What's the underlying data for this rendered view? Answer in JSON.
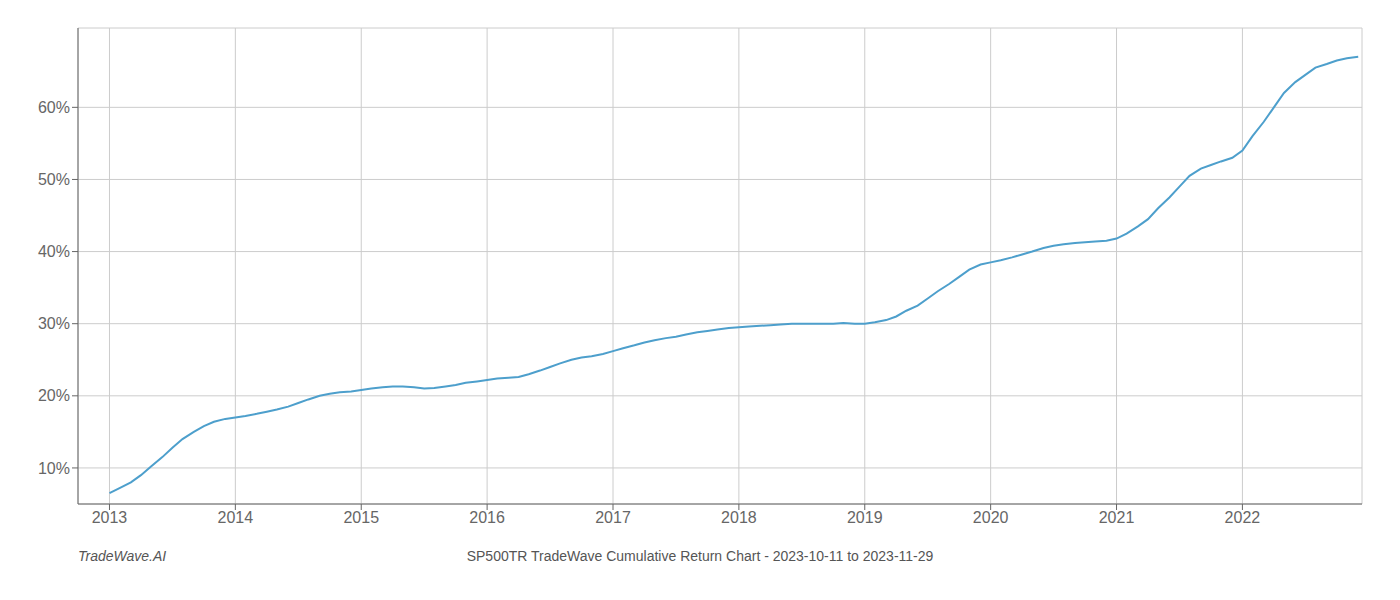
{
  "chart_data": {
    "type": "line",
    "title": "SP500TR TradeWave Cumulative Return Chart - 2023-10-11 to 2023-11-29",
    "annotations": [
      "TradeWave.AI"
    ],
    "color": "#4d9fcc",
    "grid": true,
    "x": [
      2013.0,
      2013.08,
      2013.17,
      2013.25,
      2013.33,
      2013.42,
      2013.5,
      2013.58,
      2013.67,
      2013.75,
      2013.83,
      2013.92,
      2014.0,
      2014.08,
      2014.17,
      2014.25,
      2014.33,
      2014.42,
      2014.5,
      2014.58,
      2014.67,
      2014.75,
      2014.83,
      2014.92,
      2015.0,
      2015.08,
      2015.17,
      2015.25,
      2015.33,
      2015.42,
      2015.5,
      2015.58,
      2015.67,
      2015.75,
      2015.83,
      2015.92,
      2016.0,
      2016.08,
      2016.17,
      2016.25,
      2016.33,
      2016.42,
      2016.5,
      2016.58,
      2016.67,
      2016.75,
      2016.83,
      2016.92,
      2017.0,
      2017.08,
      2017.17,
      2017.25,
      2017.33,
      2017.42,
      2017.5,
      2017.58,
      2017.67,
      2017.75,
      2017.83,
      2017.92,
      2018.0,
      2018.08,
      2018.17,
      2018.25,
      2018.33,
      2018.42,
      2018.5,
      2018.58,
      2018.67,
      2018.75,
      2018.83,
      2018.92,
      2019.0,
      2019.08,
      2019.17,
      2019.25,
      2019.33,
      2019.42,
      2019.5,
      2019.58,
      2019.67,
      2019.75,
      2019.83,
      2019.92,
      2020.0,
      2020.08,
      2020.17,
      2020.25,
      2020.33,
      2020.42,
      2020.5,
      2020.58,
      2020.67,
      2020.75,
      2020.83,
      2020.92,
      2021.0,
      2021.08,
      2021.17,
      2021.25,
      2021.33,
      2021.42,
      2021.5,
      2021.58,
      2021.67,
      2021.75,
      2021.83,
      2021.92,
      2022.0,
      2022.08,
      2022.17,
      2022.25,
      2022.33,
      2022.42,
      2022.5,
      2022.58,
      2022.67,
      2022.75,
      2022.83,
      2022.92
    ],
    "values": [
      6.5,
      7.2,
      8.0,
      9.0,
      10.2,
      11.5,
      12.8,
      14.0,
      15.0,
      15.8,
      16.4,
      16.8,
      17.0,
      17.2,
      17.5,
      17.8,
      18.1,
      18.5,
      19.0,
      19.5,
      20.0,
      20.3,
      20.5,
      20.6,
      20.8,
      21.0,
      21.2,
      21.3,
      21.3,
      21.2,
      21.0,
      21.1,
      21.3,
      21.5,
      21.8,
      22.0,
      22.2,
      22.4,
      22.5,
      22.6,
      23.0,
      23.5,
      24.0,
      24.5,
      25.0,
      25.3,
      25.5,
      25.8,
      26.2,
      26.6,
      27.0,
      27.4,
      27.7,
      28.0,
      28.2,
      28.5,
      28.8,
      29.0,
      29.2,
      29.4,
      29.5,
      29.6,
      29.7,
      29.8,
      29.9,
      30.0,
      30.0,
      30.0,
      30.0,
      30.0,
      30.1,
      30.0,
      30.0,
      30.2,
      30.5,
      31.0,
      31.8,
      32.5,
      33.5,
      34.5,
      35.5,
      36.5,
      37.5,
      38.2,
      38.5,
      38.8,
      39.2,
      39.6,
      40.0,
      40.5,
      40.8,
      41.0,
      41.2,
      41.3,
      41.4,
      41.5,
      41.8,
      42.5,
      43.5,
      44.5,
      46.0,
      47.5,
      49.0,
      50.5,
      51.5,
      52.0,
      52.5,
      53.0,
      54.0,
      56.0,
      58.0,
      60.0,
      62.0,
      63.5,
      64.5,
      65.5,
      66.0,
      66.5,
      66.8,
      67.0
    ],
    "xlim": [
      2012.75,
      2022.95
    ],
    "xticks": [
      2013,
      2014,
      2015,
      2016,
      2017,
      2018,
      2019,
      2020,
      2021,
      2022
    ],
    "ylim": [
      5,
      71
    ],
    "yticks": [
      {
        "value": 10,
        "label": "10%"
      },
      {
        "value": 20,
        "label": "20%"
      },
      {
        "value": 30,
        "label": "30%"
      },
      {
        "value": 40,
        "label": "40%"
      },
      {
        "value": 50,
        "label": "50%"
      },
      {
        "value": 60,
        "label": "60%"
      }
    ]
  }
}
